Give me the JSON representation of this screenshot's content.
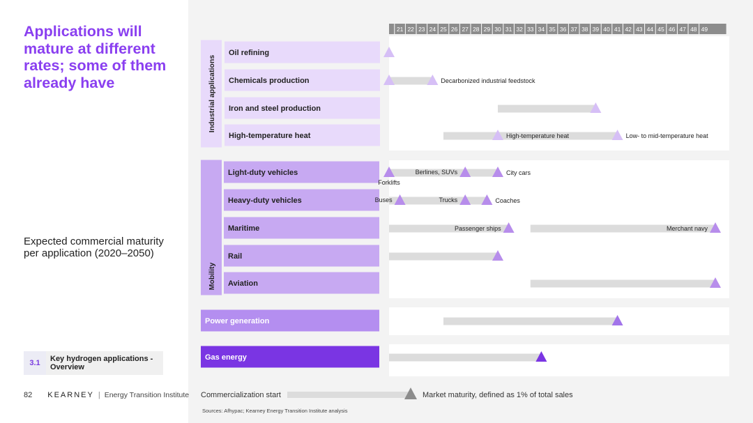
{
  "headline": "Applications will mature at different rates; some of them already have",
  "subtitle": "Expected commercial maturity per application (2020–2050)",
  "section": {
    "number": "3.1",
    "label": "Key hydrogen applications - Overview"
  },
  "footer": {
    "page_number": "82",
    "brand": "KEARNEY",
    "institute": "Energy Transition Institute"
  },
  "legend": {
    "start_label": "Commercialization start",
    "end_label": "Market maturity, defined as 1% of total sales"
  },
  "source": "Sources: Afhypac; Kearney Energy Transition Institute analysis",
  "colors": {
    "accent": "#8a3ff0",
    "bar": "#dcdcdc",
    "industrial_fill": "#e8dafb",
    "industrial_marker": "#d6bff6",
    "mobility_fill": "#c7a9f2",
    "mobility_marker": "#b78deb",
    "power_fill": "#b48ef0",
    "power_marker": "#a274ea",
    "gas_fill": "#7a35e3",
    "gas_marker": "#7a35e3",
    "tick_bar": "#8c8c8c",
    "legend_marker": "#8c8c8c"
  },
  "chart_data": {
    "type": "gantt",
    "x_ticks": [
      "21",
      "22",
      "23",
      "24",
      "25",
      "26",
      "27",
      "28",
      "29",
      "30",
      "31",
      "32",
      "33",
      "34",
      "35",
      "36",
      "37",
      "38",
      "39",
      "40",
      "41",
      "42",
      "43",
      "44",
      "45",
      "46",
      "47",
      "48",
      "49"
    ],
    "x_range": [
      2020,
      2050
    ],
    "groups": [
      {
        "label": "Industrial applications",
        "rows": [
          {
            "label": "Oil refining",
            "segments": [],
            "markers": [
              {
                "year": 2020,
                "label": ""
              }
            ]
          },
          {
            "label": "Chemicals production",
            "segments": [
              {
                "start": 2020,
                "end": 2024
              }
            ],
            "markers": [
              {
                "year": 2020,
                "label": ""
              },
              {
                "year": 2024,
                "label": "Decarbonized industrial feedstock"
              }
            ]
          },
          {
            "label": "Iron and steel production",
            "segments": [
              {
                "start": 2030,
                "end": 2039
              }
            ],
            "markers": [
              {
                "year": 2039,
                "label": ""
              }
            ]
          },
          {
            "label": "High-temperature heat",
            "segments": [
              {
                "start": 2025,
                "end": 2030
              },
              {
                "start": 2030,
                "end": 2041
              }
            ],
            "markers": [
              {
                "year": 2030,
                "label": "High-temperature heat"
              },
              {
                "year": 2041,
                "label": "Low- to mid-temperature heat"
              }
            ]
          }
        ]
      },
      {
        "label": "Mobility",
        "rows": [
          {
            "label": "Light-duty vehicles",
            "segments": [
              {
                "start": 2020,
                "end": 2030
              }
            ],
            "markers": [
              {
                "year": 2020,
                "label": "Forklifts"
              },
              {
                "year": 2027,
                "label": "Berlines, SUVs"
              },
              {
                "year": 2030,
                "label": "City cars"
              }
            ]
          },
          {
            "label": "Heavy-duty vehicles",
            "segments": [
              {
                "start": 2020,
                "end": 2029
              }
            ],
            "markers": [
              {
                "year": 2021,
                "label": "Buses"
              },
              {
                "year": 2027,
                "label": "Trucks"
              },
              {
                "year": 2029,
                "label": "Coaches"
              }
            ]
          },
          {
            "label": "Maritime",
            "segments": [
              {
                "start": 2020,
                "end": 2031
              },
              {
                "start": 2033,
                "end": 2050
              }
            ],
            "markers": [
              {
                "year": 2031,
                "label": "Passenger ships"
              },
              {
                "year": 2050,
                "label": "Merchant navy"
              }
            ]
          },
          {
            "label": "Rail",
            "segments": [
              {
                "start": 2020,
                "end": 2030
              }
            ],
            "markers": [
              {
                "year": 2030,
                "label": ""
              }
            ]
          },
          {
            "label": "Aviation",
            "segments": [
              {
                "start": 2033,
                "end": 2050
              }
            ],
            "markers": [
              {
                "year": 2050,
                "label": ""
              }
            ]
          }
        ]
      },
      {
        "label": "",
        "rows": [
          {
            "label": "Power generation",
            "segments": [
              {
                "start": 2025,
                "end": 2041
              }
            ],
            "markers": [
              {
                "year": 2041,
                "label": ""
              }
            ]
          }
        ]
      },
      {
        "label": "",
        "rows": [
          {
            "label": "Gas energy",
            "segments": [
              {
                "start": 2020,
                "end": 2034
              }
            ],
            "markers": [
              {
                "year": 2034,
                "label": ""
              }
            ]
          }
        ]
      }
    ]
  }
}
